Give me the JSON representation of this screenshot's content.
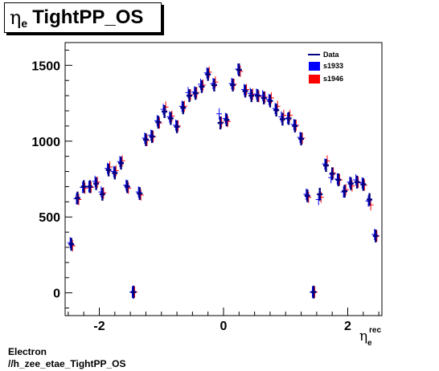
{
  "title": {
    "symbol": "η",
    "subscript": "e",
    "text": "TightPP_OS"
  },
  "footer": {
    "line1": "Electron",
    "line2": "//h_zee_etae_TightPP_OS"
  },
  "colors": {
    "data": "#000080",
    "s1933": "#0000ff",
    "s1946": "#ff0000"
  },
  "chart_data": {
    "type": "scatter",
    "title": "η_e TightPP_OS",
    "xlabel": "η_e^rec",
    "ylabel": "",
    "xlim": [
      -2.55,
      2.55
    ],
    "ylim": [
      -150,
      1650
    ],
    "x_ticks": [
      "-2",
      "0",
      "2"
    ],
    "y_ticks": [
      "0",
      "500",
      "1000",
      "1500"
    ],
    "x_tick_values": [
      -2,
      0,
      2
    ],
    "y_tick_values": [
      0,
      500,
      1000,
      1500
    ],
    "grid": false,
    "legend_position": "top-right",
    "x": [
      -2.45,
      -2.35,
      -2.25,
      -2.15,
      -2.05,
      -1.95,
      -1.85,
      -1.75,
      -1.65,
      -1.55,
      -1.45,
      -1.35,
      -1.25,
      -1.15,
      -1.05,
      -0.95,
      -0.85,
      -0.75,
      -0.65,
      -0.55,
      -0.45,
      -0.35,
      -0.25,
      -0.15,
      -0.05,
      0.05,
      0.15,
      0.25,
      0.35,
      0.45,
      0.55,
      0.65,
      0.75,
      0.85,
      0.95,
      1.05,
      1.15,
      1.25,
      1.35,
      1.45,
      1.55,
      1.65,
      1.75,
      1.85,
      1.95,
      2.05,
      2.15,
      2.25,
      2.35,
      2.45
    ],
    "series": [
      {
        "name": "Data",
        "style": "thick-cross",
        "values": [
          320,
          625,
          700,
          700,
          720,
          650,
          810,
          790,
          855,
          700,
          5,
          655,
          1010,
          1030,
          1125,
          1195,
          1150,
          1095,
          1220,
          1300,
          1315,
          1360,
          1440,
          1370,
          1120,
          1140,
          1370,
          1470,
          1330,
          1300,
          1300,
          1285,
          1265,
          1205,
          1145,
          1150,
          1100,
          1015,
          640,
          5,
          650,
          840,
          785,
          745,
          670,
          720,
          730,
          715,
          615,
          375
        ]
      },
      {
        "name": "s1933",
        "style": "thin-cross",
        "values": [
          330,
          620,
          695,
          700,
          735,
          665,
          820,
          800,
          865,
          710,
          5,
          665,
          1020,
          1040,
          1135,
          1210,
          1160,
          1105,
          1230,
          1320,
          1325,
          1375,
          1450,
          1380,
          1180,
          1150,
          1380,
          1475,
          1340,
          1315,
          1310,
          1300,
          1275,
          1215,
          1160,
          1150,
          1110,
          1025,
          650,
          5,
          615,
          850,
          760,
          750,
          665,
          730,
          745,
          725,
          605,
          385
        ]
      },
      {
        "name": "s1946",
        "style": "thin-cross",
        "values": [
          310,
          615,
          690,
          695,
          730,
          660,
          830,
          805,
          870,
          690,
          5,
          645,
          1005,
          1030,
          1120,
          1225,
          1165,
          1100,
          1230,
          1305,
          1320,
          1370,
          1455,
          1390,
          1125,
          1130,
          1375,
          1460,
          1340,
          1310,
          1295,
          1290,
          1285,
          1230,
          1170,
          1170,
          1105,
          1020,
          630,
          5,
          630,
          870,
          790,
          745,
          680,
          705,
          730,
          710,
          580,
          375
        ]
      }
    ]
  }
}
